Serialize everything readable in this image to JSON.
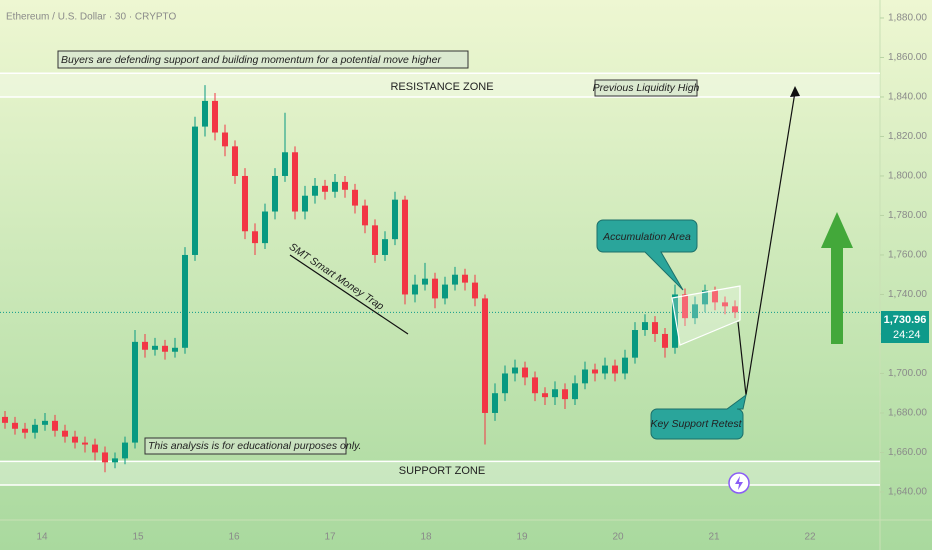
{
  "chart_data": {
    "type": "candlestick",
    "title": "Ethereum / U.S. Dollar · 30 · CRYPTO",
    "open": [
      1678,
      1675,
      1672,
      1670,
      1674,
      1676,
      1671,
      1668,
      1665,
      1664,
      1660,
      1655,
      1657,
      1665,
      1716,
      1712,
      1714,
      1711,
      1713,
      1760,
      1825,
      1838,
      1822,
      1815,
      1800,
      1772,
      1766,
      1782,
      1800,
      1812,
      1782,
      1790,
      1795,
      1792,
      1797,
      1793,
      1785,
      1775,
      1760,
      1768,
      1788,
      1740,
      1745,
      1748,
      1738,
      1745,
      1750,
      1746,
      1738,
      1680,
      1690,
      1700,
      1703,
      1698,
      1690,
      1688,
      1692,
      1687,
      1695,
      1702,
      1700,
      1704,
      1700,
      1708,
      1722,
      1726,
      1720,
      1713,
      1740,
      1728,
      1735,
      1742,
      1736,
      1734
    ],
    "high": [
      1681,
      1678,
      1675,
      1677,
      1680,
      1679,
      1674,
      1671,
      1668,
      1667,
      1663,
      1660,
      1668,
      1722,
      1720,
      1718,
      1717,
      1718,
      1764,
      1830,
      1846,
      1842,
      1826,
      1818,
      1804,
      1776,
      1786,
      1804,
      1832,
      1815,
      1795,
      1799,
      1798,
      1801,
      1800,
      1796,
      1788,
      1778,
      1772,
      1792,
      1790,
      1750,
      1756,
      1751,
      1749,
      1754,
      1753,
      1750,
      1740,
      1695,
      1704,
      1707,
      1706,
      1701,
      1693,
      1696,
      1695,
      1699,
      1706,
      1705,
      1708,
      1707,
      1712,
      1726,
      1730,
      1729,
      1723,
      1745,
      1743,
      1739,
      1745,
      1744,
      1739,
      1737
    ],
    "low": [
      1672,
      1669,
      1667,
      1667,
      1671,
      1668,
      1665,
      1662,
      1660,
      1656,
      1650,
      1652,
      1654,
      1662,
      1708,
      1709,
      1707,
      1708,
      1710,
      1757,
      1820,
      1818,
      1810,
      1796,
      1768,
      1760,
      1763,
      1778,
      1797,
      1778,
      1778,
      1786,
      1788,
      1789,
      1789,
      1781,
      1771,
      1756,
      1757,
      1765,
      1735,
      1736,
      1742,
      1733,
      1735,
      1742,
      1742,
      1734,
      1664,
      1676,
      1686,
      1696,
      1694,
      1686,
      1684,
      1684,
      1682,
      1684,
      1692,
      1696,
      1697,
      1696,
      1697,
      1705,
      1719,
      1716,
      1708,
      1710,
      1724,
      1725,
      1731,
      1732,
      1730,
      1728
    ],
    "close": [
      1675,
      1672,
      1670,
      1674,
      1676,
      1671,
      1668,
      1665,
      1664,
      1660,
      1655,
      1657,
      1665,
      1716,
      1712,
      1714,
      1711,
      1713,
      1760,
      1825,
      1838,
      1822,
      1815,
      1800,
      1772,
      1766,
      1782,
      1800,
      1812,
      1782,
      1790,
      1795,
      1792,
      1797,
      1793,
      1785,
      1775,
      1760,
      1768,
      1788,
      1740,
      1745,
      1748,
      1738,
      1745,
      1750,
      1746,
      1738,
      1680,
      1690,
      1700,
      1703,
      1698,
      1690,
      1688,
      1692,
      1687,
      1695,
      1702,
      1700,
      1704,
      1700,
      1708,
      1722,
      1726,
      1720,
      1713,
      1740,
      1728,
      1735,
      1742,
      1736,
      1734,
      1730.96
    ],
    "up_color": "#089981",
    "down_color": "#f23645",
    "ylim": [
      1625.8,
      1889.1
    ],
    "yticks": [
      {
        "value": 1640,
        "label": "1,640.00"
      },
      {
        "value": 1660,
        "label": "1,660.00"
      },
      {
        "value": 1680,
        "label": "1,680.00"
      },
      {
        "value": 1700,
        "label": "1,700.00"
      },
      {
        "value": 1720,
        "label": "1,720.00"
      },
      {
        "value": 1740,
        "label": "1,740.00"
      },
      {
        "value": 1760,
        "label": "1,760.00"
      },
      {
        "value": 1780,
        "label": "1,780.00"
      },
      {
        "value": 1800,
        "label": "1,800.00"
      },
      {
        "value": 1820,
        "label": "1,820.00"
      },
      {
        "value": 1840,
        "label": "1,840.00"
      },
      {
        "value": 1860,
        "label": "1,860.00"
      },
      {
        "value": 1880,
        "label": "1,880.00"
      }
    ],
    "time_labels": [
      "14",
      "15",
      "16",
      "17",
      "18",
      "19",
      "20",
      "21",
      "22"
    ],
    "last_price": 1730.96,
    "last_price_label": "1,730.96",
    "countdown": "24:24",
    "zones": [
      {
        "label": "RESISTANCE ZONE",
        "range": [
          1840,
          1852
        ]
      },
      {
        "label": "SUPPORT ZONE",
        "range": [
          1643.5,
          1655.5
        ]
      }
    ],
    "annotations": {
      "headline": "Buyers are defending support and building momentum for a potential move higher",
      "liquidity": "Previous Liquidity High",
      "trap": "SMT  Smart Money Trap",
      "accumulation": "Accumulation Area",
      "retest": "Key Support Retest",
      "disclaimer": "This analysis is for educational purposes only."
    }
  }
}
